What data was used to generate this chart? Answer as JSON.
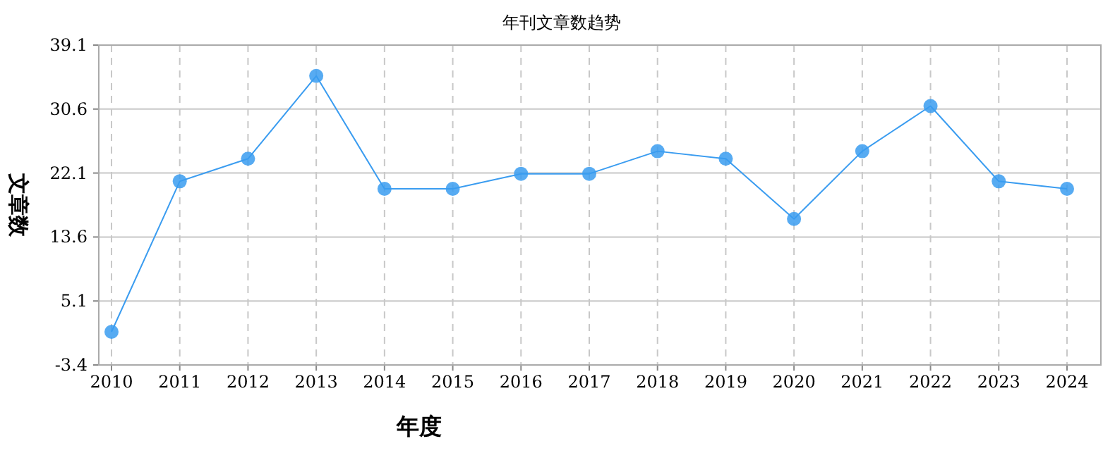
{
  "chart_data": {
    "type": "line",
    "title": "年刊文章数趋势",
    "xlabel": "年度",
    "ylabel": "文章数",
    "categories": [
      "2010",
      "2011",
      "2012",
      "2013",
      "2014",
      "2015",
      "2016",
      "2017",
      "2018",
      "2019",
      "2020",
      "2021",
      "2022",
      "2023",
      "2024"
    ],
    "series": [
      {
        "color": "#3a9cf0",
        "values": [
          1,
          21,
          24,
          35,
          20,
          20,
          22,
          22,
          25,
          24,
          16,
          25,
          31,
          21,
          20
        ]
      }
    ],
    "ylim": [
      -3.4,
      39.1
    ],
    "yticks": [
      -3.4,
      5.1,
      13.6,
      22.1,
      30.6,
      39.1
    ],
    "grid": true,
    "marker": "circle",
    "line_style": "solid"
  }
}
